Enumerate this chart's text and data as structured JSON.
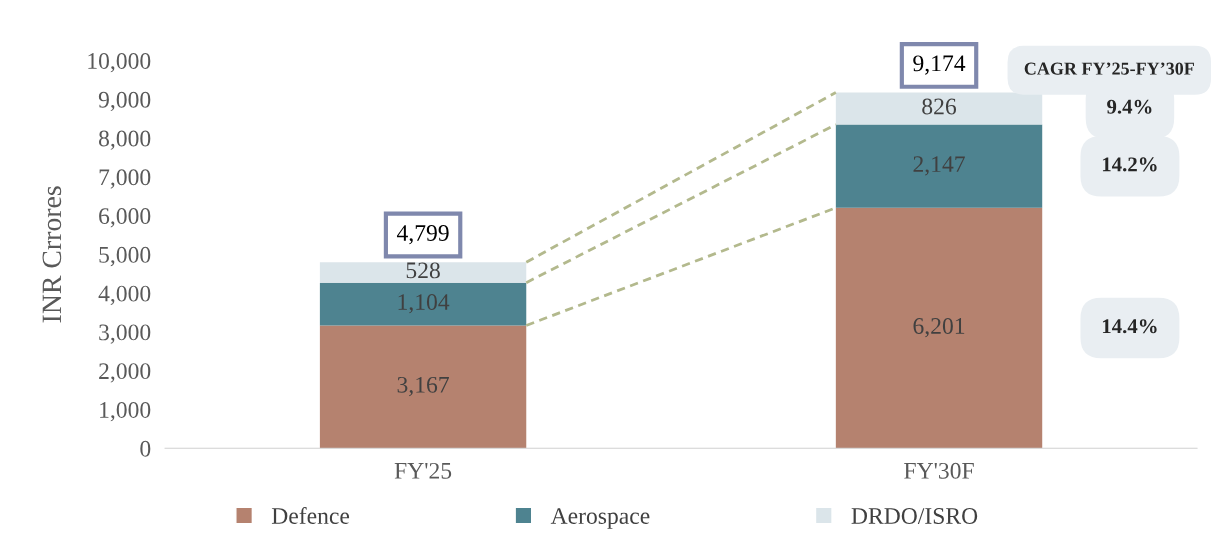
{
  "chart_data": {
    "type": "bar",
    "stacked": true,
    "ylabel": "INR Crrores",
    "categories": [
      "FY'25",
      "FY'30F"
    ],
    "series": [
      {
        "name": "Defence",
        "color": "#b5826f",
        "values": [
          3167,
          6201
        ],
        "value_labels": [
          "3,167",
          "6,201"
        ]
      },
      {
        "name": "Aerospace",
        "color": "#4e8390",
        "values": [
          1104,
          2147
        ],
        "value_labels": [
          "1,104",
          "2,147"
        ]
      },
      {
        "name": "DRDO/ISRO",
        "color": "#dbe5ea",
        "values": [
          528,
          826
        ],
        "value_labels": [
          "528",
          "826"
        ]
      }
    ],
    "totals": [
      "4,799",
      "9,174"
    ],
    "ylim": [
      0,
      10000
    ],
    "yticks": [
      {
        "value": 0,
        "label": "0"
      },
      {
        "value": 1000,
        "label": "1,000"
      },
      {
        "value": 2000,
        "label": "2,000"
      },
      {
        "value": 3000,
        "label": "3,000"
      },
      {
        "value": 4000,
        "label": "4,000"
      },
      {
        "value": 5000,
        "label": "5,000"
      },
      {
        "value": 6000,
        "label": "6,000"
      },
      {
        "value": 7000,
        "label": "7,000"
      },
      {
        "value": 8000,
        "label": "8,000"
      },
      {
        "value": 9000,
        "label": "9,000"
      },
      {
        "value": 10000,
        "label": "10,000"
      }
    ],
    "annotations": [
      "CAGR FY’25-FY’30F",
      "9.4%",
      "14.2%",
      "14.4%"
    ],
    "grid": false,
    "legend": "bottom"
  }
}
